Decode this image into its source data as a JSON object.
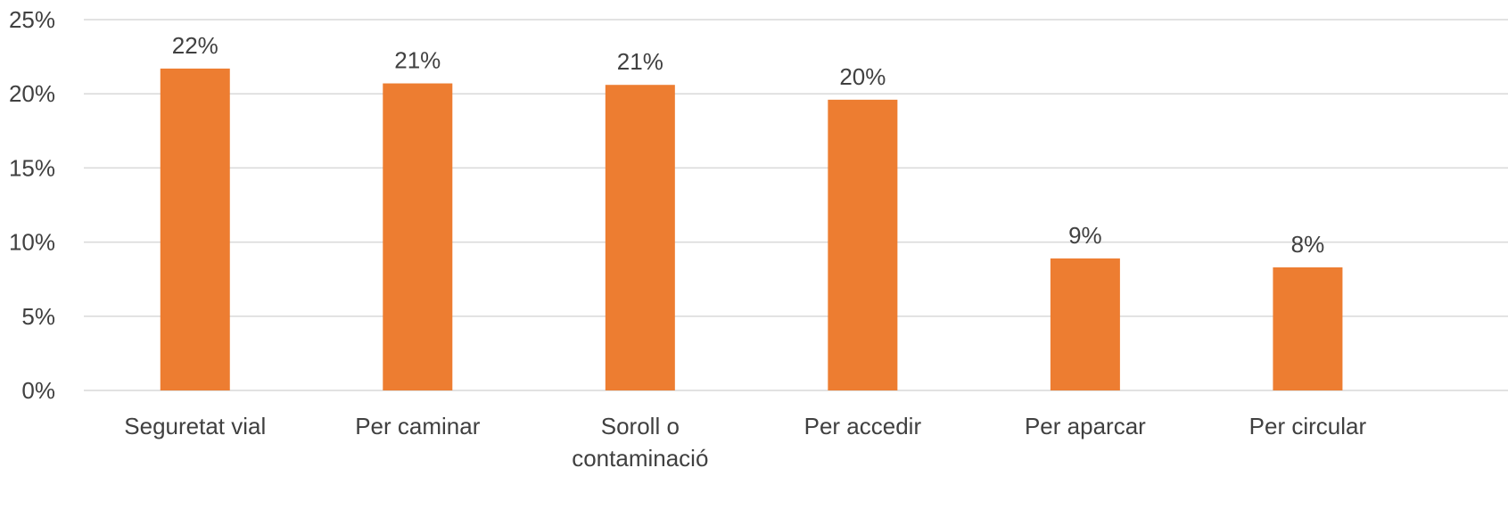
{
  "chart_data": {
    "type": "bar",
    "title": "",
    "xlabel": "",
    "ylabel": "",
    "categories": [
      "Seguretat vial",
      "Per caminar",
      "Soroll o contaminació",
      "Per accedir",
      "Per aparcar",
      "Per circular"
    ],
    "category_label_lines": [
      [
        "Seguretat vial"
      ],
      [
        "Per caminar"
      ],
      [
        "Soroll o",
        "contaminació"
      ],
      [
        "Per accedir"
      ],
      [
        "Per aparcar"
      ],
      [
        "Per circular"
      ]
    ],
    "values": [
      21.7,
      20.7,
      20.6,
      19.6,
      8.9,
      8.3
    ],
    "data_labels": [
      "22%",
      "21%",
      "21%",
      "20%",
      "9%",
      "8%"
    ],
    "ylim": [
      0,
      25
    ],
    "yticks": [
      0,
      5,
      10,
      15,
      20,
      25
    ],
    "ytick_labels": [
      "0%",
      "5%",
      "10%",
      "15%",
      "20%",
      "25%"
    ],
    "grid": true,
    "legend": "none",
    "colors": {
      "bar": "#ED7D31",
      "grid": "#D9D9D9",
      "text": "#404040"
    }
  }
}
